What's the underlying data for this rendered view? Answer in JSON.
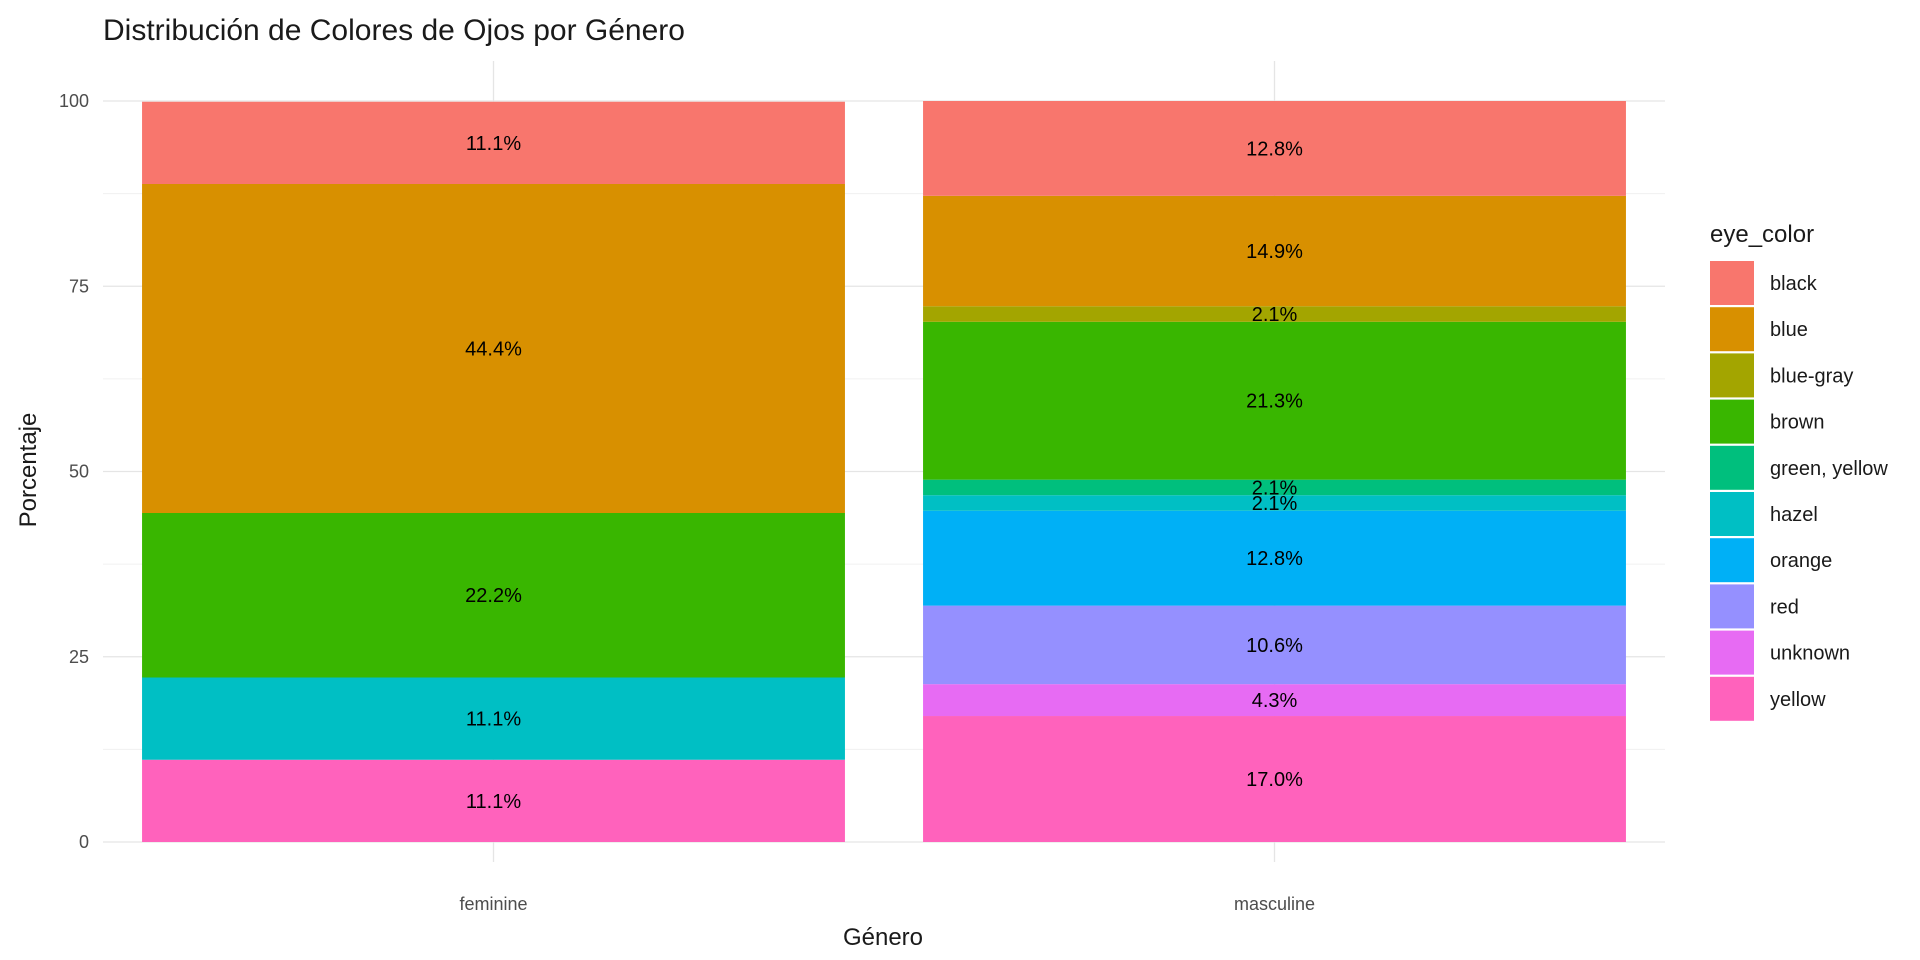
{
  "chart_data": {
    "type": "bar",
    "stacked": true,
    "title": "Distribución de Colores de Ojos por Género",
    "xlabel": "Género",
    "ylabel": "Porcentaje",
    "ylim": [
      0,
      100
    ],
    "yticks": [
      0,
      25,
      50,
      75,
      100
    ],
    "grid": true,
    "legend_position": "right",
    "legend_title": "eye_color",
    "categories": [
      "feminine",
      "masculine"
    ],
    "series": [
      {
        "name": "black",
        "color": "#F8766D",
        "values": [
          11.1,
          12.8
        ],
        "labels": [
          "11.1%",
          "12.8%"
        ]
      },
      {
        "name": "blue",
        "color": "#D89000",
        "values": [
          44.4,
          14.9
        ],
        "labels": [
          "44.4%",
          "14.9%"
        ]
      },
      {
        "name": "blue-gray",
        "color": "#A3A500",
        "values": [
          0,
          2.1
        ],
        "labels": [
          "",
          "2.1%"
        ]
      },
      {
        "name": "brown",
        "color": "#39B600",
        "values": [
          22.2,
          21.3
        ],
        "labels": [
          "22.2%",
          "21.3%"
        ]
      },
      {
        "name": "green, yellow",
        "color": "#00BF7D",
        "values": [
          0,
          2.1
        ],
        "labels": [
          "",
          "2.1%"
        ]
      },
      {
        "name": "hazel",
        "color": "#00BFC4",
        "values": [
          11.1,
          2.1
        ],
        "labels": [
          "11.1%",
          "2.1%"
        ]
      },
      {
        "name": "orange",
        "color": "#00B0F6",
        "values": [
          0,
          12.8
        ],
        "labels": [
          "",
          "12.8%"
        ]
      },
      {
        "name": "red",
        "color": "#9590FF",
        "values": [
          0,
          10.6
        ],
        "labels": [
          "",
          "10.6%"
        ]
      },
      {
        "name": "unknown",
        "color": "#E76BF3",
        "values": [
          0,
          4.3
        ],
        "labels": [
          "",
          "4.3%"
        ]
      },
      {
        "name": "yellow",
        "color": "#FF62BC",
        "values": [
          11.1,
          17.0
        ],
        "labels": [
          "11.1%",
          "17.0%"
        ]
      }
    ]
  }
}
